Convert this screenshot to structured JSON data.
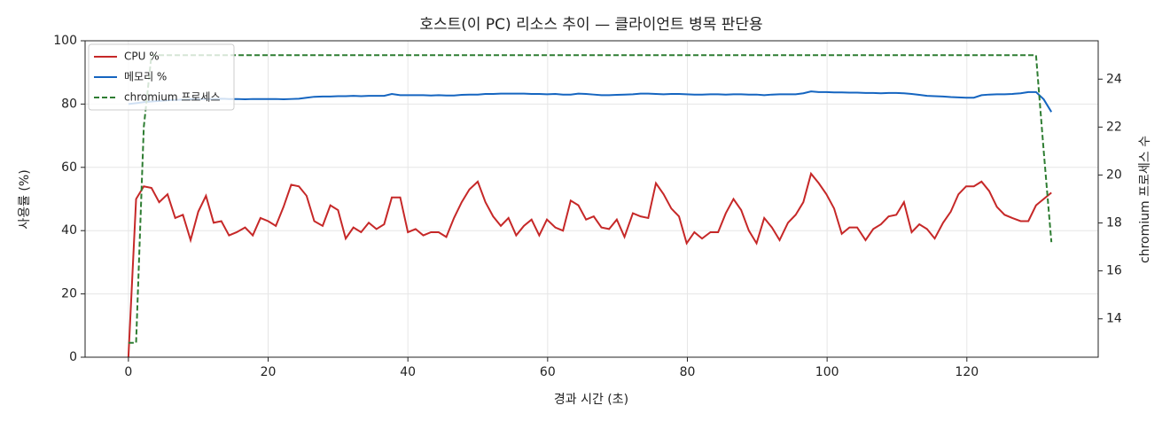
{
  "chart_data": {
    "type": "line",
    "title": "호스트(이 PC) 리소스 추이 — 클라이언트 병목 판단용",
    "x_label": "경과 시간 (초)",
    "y_label": "사용률 (%)",
    "y2_label": "chromium 프로세스 수",
    "x": [
      0,
      1.1,
      2.2,
      3.3,
      4.4,
      5.6,
      6.7,
      7.8,
      8.9,
      10,
      11.1,
      12.2,
      13.3,
      14.4,
      15.5,
      16.7,
      17.8,
      18.9,
      20,
      21.1,
      22.2,
      23.3,
      24.4,
      25.5,
      26.6,
      27.8,
      28.9,
      30,
      31.1,
      32.2,
      33.3,
      34.4,
      35.5,
      36.6,
      37.7,
      38.9,
      40,
      41.1,
      42.2,
      43.3,
      44.4,
      45.5,
      46.6,
      47.7,
      48.8,
      50,
      51.1,
      52.2,
      53.3,
      54.4,
      55.5,
      56.6,
      57.7,
      58.8,
      59.9,
      61.1,
      62.2,
      63.3,
      64.4,
      65.5,
      66.6,
      67.7,
      68.8,
      69.9,
      71,
      72.2,
      73.3,
      74.4,
      75.5,
      76.6,
      77.7,
      78.8,
      79.9,
      81,
      82.1,
      83.3,
      84.4,
      85.5,
      86.6,
      87.7,
      88.8,
      89.9,
      91,
      92.1,
      93.2,
      94.4,
      95.5,
      96.6,
      97.7,
      98.8,
      99.9,
      101,
      102.1,
      103.2,
      104.3,
      105.5,
      106.6,
      107.7,
      108.8,
      109.9,
      111,
      112.1,
      113.2,
      114.3,
      115.4,
      116.6,
      117.7,
      118.8,
      119.9,
      121,
      122.1,
      123.2,
      124.3,
      125.4,
      126.5,
      127.7,
      128.8,
      129.9,
      131,
      132.1
    ],
    "series": [
      {
        "name": "CPU %",
        "color": "#c62828",
        "values": [
          0,
          50,
          54,
          53.5,
          49,
          51.5,
          44,
          45,
          37,
          46,
          51,
          42.5,
          43,
          38.5,
          39.5,
          41,
          38.5,
          44,
          43,
          41.5,
          47.5,
          54.5,
          54,
          51,
          43,
          41.5,
          48,
          46.5,
          37.5,
          41,
          39.5,
          42.5,
          40.5,
          42,
          50.5,
          50.5,
          39.5,
          40.5,
          38.5,
          39.5,
          39.5,
          38,
          44,
          49,
          53,
          55.5,
          49,
          44.5,
          41.5,
          44,
          38.5,
          41.5,
          43.5,
          38.5,
          43.5,
          41,
          40,
          49.5,
          48,
          43.5,
          44.5,
          41,
          40.5,
          43.5,
          38,
          45.5,
          44.5,
          44,
          55,
          51.5,
          47,
          44.5,
          36,
          39.5,
          37.5,
          39.5,
          39.5,
          45.5,
          50,
          46.5,
          40,
          36,
          44,
          41,
          37,
          42.5,
          45,
          49,
          58,
          55,
          51.5,
          47,
          39,
          41,
          41,
          37,
          40.5,
          42,
          44.5,
          45,
          49,
          39.5,
          42,
          40.5,
          37.5,
          42.5,
          46,
          51.5,
          54,
          54,
          55.5,
          52.5,
          47.5,
          45,
          44,
          43,
          43,
          48,
          50,
          52
        ]
      },
      {
        "name": "메모리 %",
        "color": "#1565c0",
        "values": [
          80,
          80.3,
          80.6,
          80.8,
          81,
          81.2,
          81.3,
          81.4,
          81.5,
          81.5,
          81.6,
          81.6,
          81.7,
          81.6,
          81.6,
          81.5,
          81.6,
          81.6,
          81.6,
          81.6,
          81.5,
          81.6,
          81.7,
          82,
          82.3,
          82.4,
          82.4,
          82.5,
          82.5,
          82.6,
          82.5,
          82.6,
          82.6,
          82.6,
          83.2,
          82.8,
          82.8,
          82.8,
          82.8,
          82.7,
          82.8,
          82.7,
          82.7,
          82.9,
          83,
          83,
          83.2,
          83.2,
          83.3,
          83.3,
          83.3,
          83.3,
          83.2,
          83.2,
          83.1,
          83.2,
          83,
          83,
          83.3,
          83.2,
          83,
          82.8,
          82.8,
          82.9,
          83,
          83.1,
          83.3,
          83.3,
          83.2,
          83.1,
          83.2,
          83.2,
          83.1,
          83,
          83,
          83.1,
          83.1,
          83,
          83.1,
          83.1,
          83,
          83,
          82.8,
          83,
          83.1,
          83.1,
          83.1,
          83.4,
          84,
          83.8,
          83.8,
          83.7,
          83.7,
          83.6,
          83.6,
          83.5,
          83.5,
          83.4,
          83.5,
          83.5,
          83.4,
          83.2,
          82.9,
          82.6,
          82.5,
          82.4,
          82.2,
          82.1,
          82,
          82,
          82.8,
          83,
          83.1,
          83.1,
          83.2,
          83.4,
          83.8,
          83.8,
          81.5,
          77.5
        ]
      },
      {
        "name": "chromium 프로세스",
        "color": "#2e7d32",
        "dashed": true,
        "axis": "y2",
        "values": [
          13,
          13,
          22,
          25,
          25,
          25,
          25,
          25,
          25,
          25,
          25,
          25,
          25,
          25,
          25,
          25,
          25,
          25,
          25,
          25,
          25,
          25,
          25,
          25,
          25,
          25,
          25,
          25,
          25,
          25,
          25,
          25,
          25,
          25,
          25,
          25,
          25,
          25,
          25,
          25,
          25,
          25,
          25,
          25,
          25,
          25,
          25,
          25,
          25,
          25,
          25,
          25,
          25,
          25,
          25,
          25,
          25,
          25,
          25,
          25,
          25,
          25,
          25,
          25,
          25,
          25,
          25,
          25,
          25,
          25,
          25,
          25,
          25,
          25,
          25,
          25,
          25,
          25,
          25,
          25,
          25,
          25,
          25,
          25,
          25,
          25,
          25,
          25,
          25,
          25,
          25,
          25,
          25,
          25,
          25,
          25,
          25,
          25,
          25,
          25,
          25,
          25,
          25,
          25,
          25,
          25,
          25,
          25,
          25,
          25,
          25,
          25,
          25,
          25,
          25,
          25,
          25,
          25,
          21,
          17.2
        ]
      }
    ],
    "xlim": [
      -6.2,
      138.8
    ],
    "xticks": [
      0,
      20,
      40,
      60,
      80,
      100,
      120
    ],
    "ylim": [
      0,
      100
    ],
    "yticks": [
      0,
      20,
      40,
      60,
      80,
      100
    ],
    "y2lim": [
      12.4,
      25.6
    ],
    "y2ticks": [
      14,
      16,
      18,
      20,
      22,
      24
    ],
    "grid": true,
    "legend": "upper-left"
  }
}
